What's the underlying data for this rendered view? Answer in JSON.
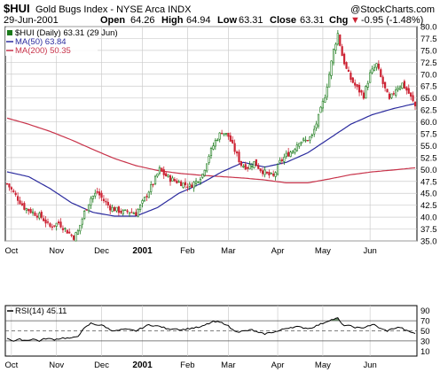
{
  "header": {
    "symbol": "$HUI",
    "name": "Gold Bugs Index - NYSE Arca INDX",
    "watermark": "@StockCharts.com",
    "date": "29-Jun-2001",
    "open_label": "Open",
    "open": "64.26",
    "high_label": "High",
    "high": "64.94",
    "low_label": "Low",
    "low": "63.31",
    "close_label": "Close",
    "close": "63.31",
    "chg_label": "Chg",
    "chg": "-0.95 (-1.48%)",
    "chg_marker": "▼"
  },
  "legend": {
    "price": "$HUI (Daily) 63.31 (29 Jun)",
    "ma50": "MA(50) 63.84",
    "ma200": "MA(200) 50.35",
    "rsi": "RSI(14) 45.11"
  },
  "colors": {
    "up": "#1a7a1a",
    "down": "#cc2233",
    "ma50": "#2b2b9e",
    "ma200": "#c8334a",
    "grid": "#cccccc",
    "overbought_fill": "#6a8a6a",
    "oversold_fill": "#6a8a6a"
  },
  "chart_data": [
    {
      "type": "candlestick",
      "series_name": "$HUI (Daily)",
      "ylim": [
        35.0,
        80.0
      ],
      "y_ticks": [
        "35.0",
        "37.5",
        "40.0",
        "42.5",
        "45.0",
        "47.5",
        "50.0",
        "52.5",
        "55.0",
        "57.5",
        "60.0",
        "62.5",
        "65.0",
        "67.5",
        "70.0",
        "72.5",
        "75.0",
        "77.5",
        "80.0"
      ],
      "x_tick_labels": [
        "Oct",
        "Nov",
        "Dec",
        "2001",
        "Feb",
        "Mar",
        "Apr",
        "May",
        "Jun"
      ],
      "x_tick_days": [
        2,
        23,
        44,
        63,
        84,
        103,
        126,
        147,
        169
      ],
      "trading_days": 191,
      "close_anchors": [
        [
          0,
          47.0
        ],
        [
          4,
          44.5
        ],
        [
          8,
          42.0
        ],
        [
          12,
          41.0
        ],
        [
          16,
          40.0
        ],
        [
          20,
          38.0
        ],
        [
          24,
          38.8
        ],
        [
          28,
          37.0
        ],
        [
          31,
          35.8
        ],
        [
          33,
          37.0
        ],
        [
          36,
          41.0
        ],
        [
          39,
          44.0
        ],
        [
          42,
          45.2
        ],
        [
          45,
          43.5
        ],
        [
          48,
          42.0
        ],
        [
          51,
          41.5
        ],
        [
          54,
          41.0
        ],
        [
          57,
          41.2
        ],
        [
          60,
          40.8
        ],
        [
          63,
          43.0
        ],
        [
          66,
          45.5
        ],
        [
          69,
          48.0
        ],
        [
          71,
          50.0
        ],
        [
          73,
          49.0
        ],
        [
          76,
          48.0
        ],
        [
          79,
          47.5
        ],
        [
          82,
          47.0
        ],
        [
          85,
          46.5
        ],
        [
          88,
          47.5
        ],
        [
          91,
          49.0
        ],
        [
          94,
          53.0
        ],
        [
          97,
          56.0
        ],
        [
          100,
          58.0
        ],
        [
          103,
          57.0
        ],
        [
          106,
          54.0
        ],
        [
          109,
          51.0
        ],
        [
          112,
          50.5
        ],
        [
          115,
          51.5
        ],
        [
          118,
          50.0
        ],
        [
          121,
          49.0
        ],
        [
          124,
          48.5
        ],
        [
          127,
          51.5
        ],
        [
          130,
          53.0
        ],
        [
          133,
          54.0
        ],
        [
          136,
          56.0
        ],
        [
          139,
          56.0
        ],
        [
          142,
          57.0
        ],
        [
          145,
          61.0
        ],
        [
          148,
          65.5
        ],
        [
          150,
          70.0
        ],
        [
          152,
          75.0
        ],
        [
          154,
          78.5
        ],
        [
          156,
          74.0
        ],
        [
          158,
          71.0
        ],
        [
          160,
          69.0
        ],
        [
          163,
          67.0
        ],
        [
          166,
          65.5
        ],
        [
          169,
          70.0
        ],
        [
          172,
          72.0
        ],
        [
          175,
          68.0
        ],
        [
          178,
          64.5
        ],
        [
          181,
          67.0
        ],
        [
          184,
          68.0
        ],
        [
          187,
          66.0
        ],
        [
          190,
          63.3
        ]
      ],
      "ma50": {
        "name": "MA(50)",
        "last": 63.84,
        "anchors": [
          [
            0,
            49.5
          ],
          [
            10,
            48.5
          ],
          [
            20,
            46.0
          ],
          [
            30,
            43.0
          ],
          [
            40,
            41.0
          ],
          [
            50,
            40.2
          ],
          [
            60,
            40.2
          ],
          [
            70,
            42.0
          ],
          [
            80,
            45.0
          ],
          [
            90,
            47.0
          ],
          [
            100,
            49.5
          ],
          [
            110,
            51.5
          ],
          [
            120,
            50.5
          ],
          [
            130,
            51.5
          ],
          [
            140,
            53.5
          ],
          [
            150,
            56.5
          ],
          [
            160,
            59.5
          ],
          [
            170,
            61.5
          ],
          [
            180,
            62.8
          ],
          [
            190,
            63.84
          ]
        ]
      },
      "ma200": {
        "name": "MA(200)",
        "last": 50.35,
        "anchors": [
          [
            0,
            60.8
          ],
          [
            10,
            59.5
          ],
          [
            20,
            58.0
          ],
          [
            30,
            56.2
          ],
          [
            40,
            54.2
          ],
          [
            50,
            52.3
          ],
          [
            60,
            50.8
          ],
          [
            70,
            49.8
          ],
          [
            80,
            49.2
          ],
          [
            90,
            48.8
          ],
          [
            100,
            48.5
          ],
          [
            110,
            48.2
          ],
          [
            120,
            47.8
          ],
          [
            130,
            47.2
          ],
          [
            140,
            47.2
          ],
          [
            150,
            48.0
          ],
          [
            160,
            48.9
          ],
          [
            170,
            49.5
          ],
          [
            180,
            49.9
          ],
          [
            190,
            50.35
          ]
        ]
      }
    },
    {
      "type": "line",
      "series_name": "RSI(14)",
      "ylim": [
        0,
        100
      ],
      "y_ticks": [
        "10",
        "30",
        "50",
        "70",
        "90"
      ],
      "levels": [
        30,
        50,
        70
      ],
      "x_tick_labels": [
        "Oct",
        "Nov",
        "Dec",
        "2001",
        "Feb",
        "Mar",
        "Apr",
        "May",
        "Jun"
      ],
      "anchors": [
        [
          0,
          36
        ],
        [
          3,
          30
        ],
        [
          6,
          33
        ],
        [
          9,
          31
        ],
        [
          12,
          34
        ],
        [
          15,
          30
        ],
        [
          18,
          35
        ],
        [
          22,
          33
        ],
        [
          26,
          36
        ],
        [
          30,
          35
        ],
        [
          33,
          40
        ],
        [
          36,
          55
        ],
        [
          39,
          65
        ],
        [
          42,
          62
        ],
        [
          45,
          60
        ],
        [
          48,
          52
        ],
        [
          51,
          50
        ],
        [
          54,
          53
        ],
        [
          57,
          52
        ],
        [
          60,
          50
        ],
        [
          63,
          56
        ],
        [
          66,
          62
        ],
        [
          69,
          60
        ],
        [
          72,
          58
        ],
        [
          75,
          53
        ],
        [
          78,
          55
        ],
        [
          81,
          52
        ],
        [
          84,
          54
        ],
        [
          87,
          56
        ],
        [
          90,
          57
        ],
        [
          93,
          63
        ],
        [
          96,
          68
        ],
        [
          99,
          67
        ],
        [
          102,
          63
        ],
        [
          105,
          52
        ],
        [
          108,
          48
        ],
        [
          111,
          50
        ],
        [
          114,
          52
        ],
        [
          117,
          46
        ],
        [
          120,
          44
        ],
        [
          123,
          47
        ],
        [
          126,
          49
        ],
        [
          129,
          54
        ],
        [
          132,
          57
        ],
        [
          135,
          58
        ],
        [
          138,
          56
        ],
        [
          141,
          55
        ],
        [
          144,
          60
        ],
        [
          147,
          65
        ],
        [
          150,
          71
        ],
        [
          152,
          73
        ],
        [
          154,
          75
        ],
        [
          156,
          62
        ],
        [
          159,
          60
        ],
        [
          162,
          57
        ],
        [
          165,
          55
        ],
        [
          168,
          60
        ],
        [
          171,
          62
        ],
        [
          174,
          54
        ],
        [
          177,
          50
        ],
        [
          180,
          55
        ],
        [
          183,
          57
        ],
        [
          186,
          50
        ],
        [
          190,
          45
        ]
      ],
      "last": 45.11
    }
  ]
}
